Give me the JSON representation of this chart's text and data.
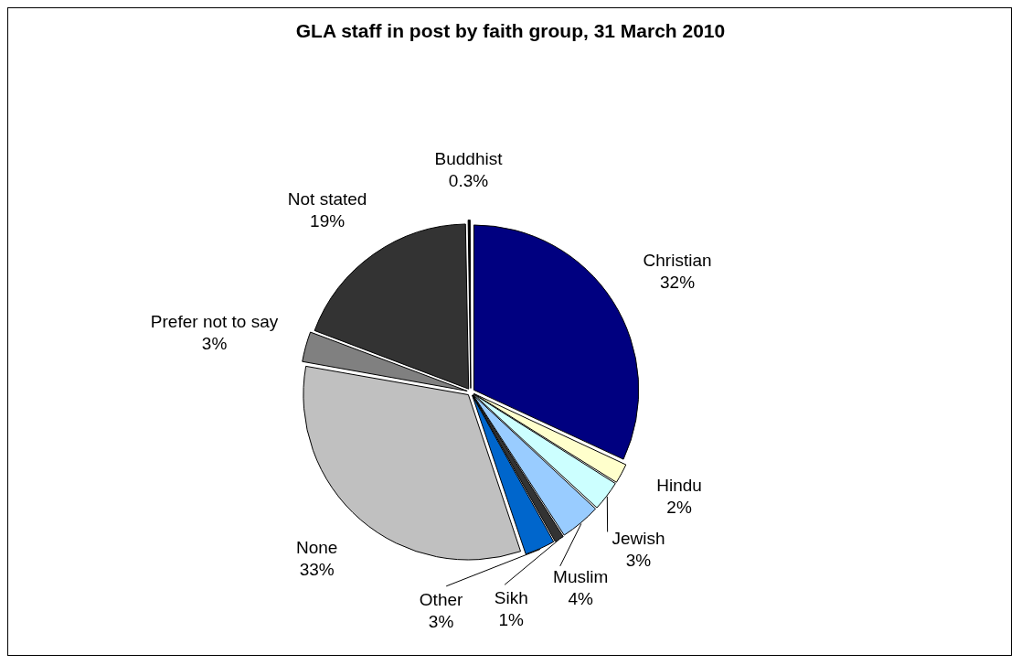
{
  "chart_data": {
    "type": "pie",
    "title": "GLA staff in post by faith group, 31 March 2010",
    "categories": [
      "Christian",
      "Hindu",
      "Jewish",
      "Muslim",
      "Sikh",
      "Other",
      "None",
      "Prefer not to say",
      "Not stated",
      "Buddhist"
    ],
    "values": [
      32,
      2,
      3,
      4,
      1,
      3,
      33,
      3,
      19,
      0.3
    ],
    "value_labels": [
      "32%",
      "2%",
      "3%",
      "4%",
      "1%",
      "3%",
      "33%",
      "3%",
      "19%",
      "0.3%"
    ],
    "colors": [
      "#000080",
      "#ffffcc",
      "#ccffff",
      "#99ccff",
      "#333333",
      "#0066cc",
      "#c0c0c0",
      "#808080",
      "#333333",
      "#000000"
    ],
    "legend": false
  }
}
